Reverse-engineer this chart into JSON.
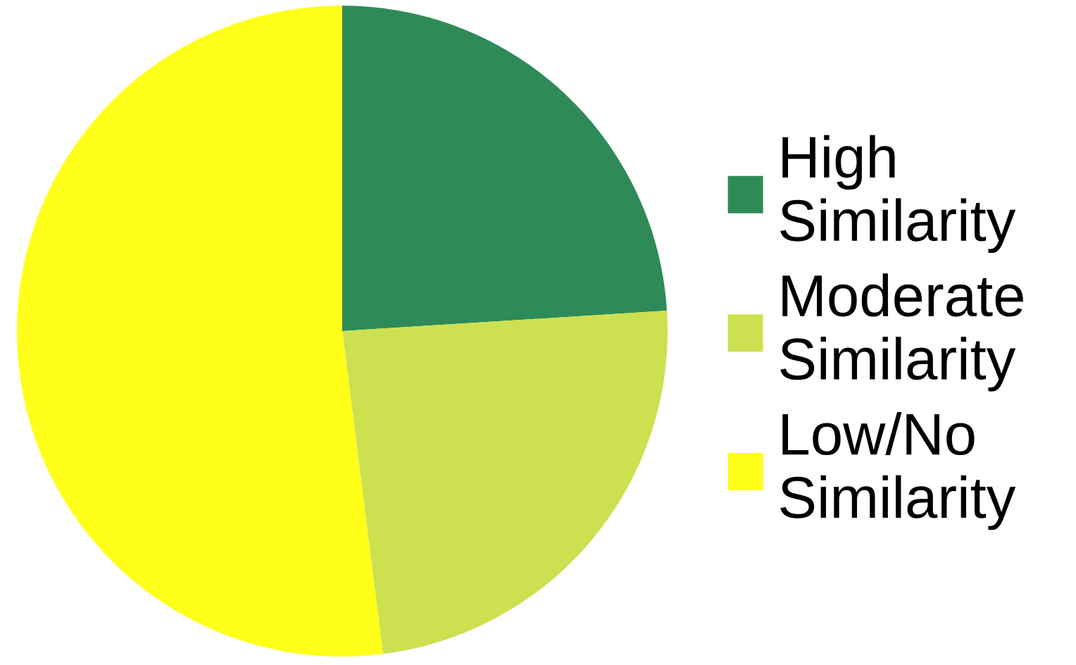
{
  "chart_data": {
    "type": "pie",
    "categories": [
      "High Similarity",
      "Moderate Similarity",
      "Low/No Similarity"
    ],
    "values": [
      24,
      24,
      52
    ],
    "colors": [
      "#2e8b57",
      "#cde04f",
      "#ffff1a"
    ],
    "legend": "right"
  }
}
